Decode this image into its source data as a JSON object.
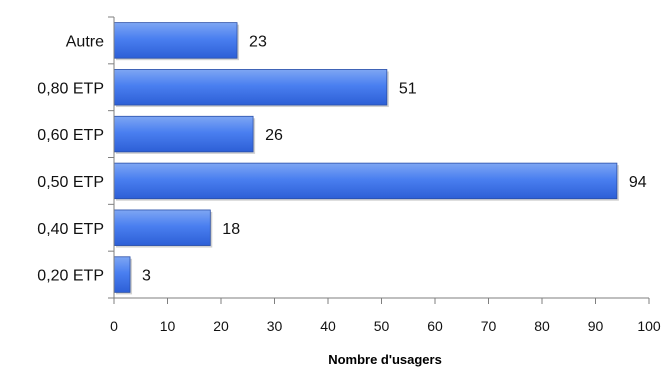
{
  "chart_data": {
    "type": "bar",
    "orientation": "horizontal",
    "title": "",
    "xlabel": "Nombre d'usagers",
    "ylabel": "",
    "categories": [
      "Autre",
      "0,80 ETP",
      "0,60 ETP",
      "0,50 ETP",
      "0,40 ETP",
      "0,20 ETP"
    ],
    "values": [
      23,
      51,
      26,
      94,
      18,
      3
    ],
    "data_labels": [
      "23",
      "51",
      "26",
      "94",
      "18",
      "3"
    ],
    "xlim": [
      0,
      100
    ],
    "x_ticks": [
      "0",
      "10",
      "20",
      "30",
      "40",
      "50",
      "60",
      "70",
      "80",
      "90",
      "100"
    ],
    "grid": false,
    "legend": "none",
    "colors": {
      "bar_top": "#7ea6f3",
      "bar_mid": "#4a7ff0",
      "bar_bottom": "#2d5fd6",
      "bar_edge": "#2a4fa8",
      "axis": "#7f7f7f",
      "text": "#111111"
    }
  }
}
